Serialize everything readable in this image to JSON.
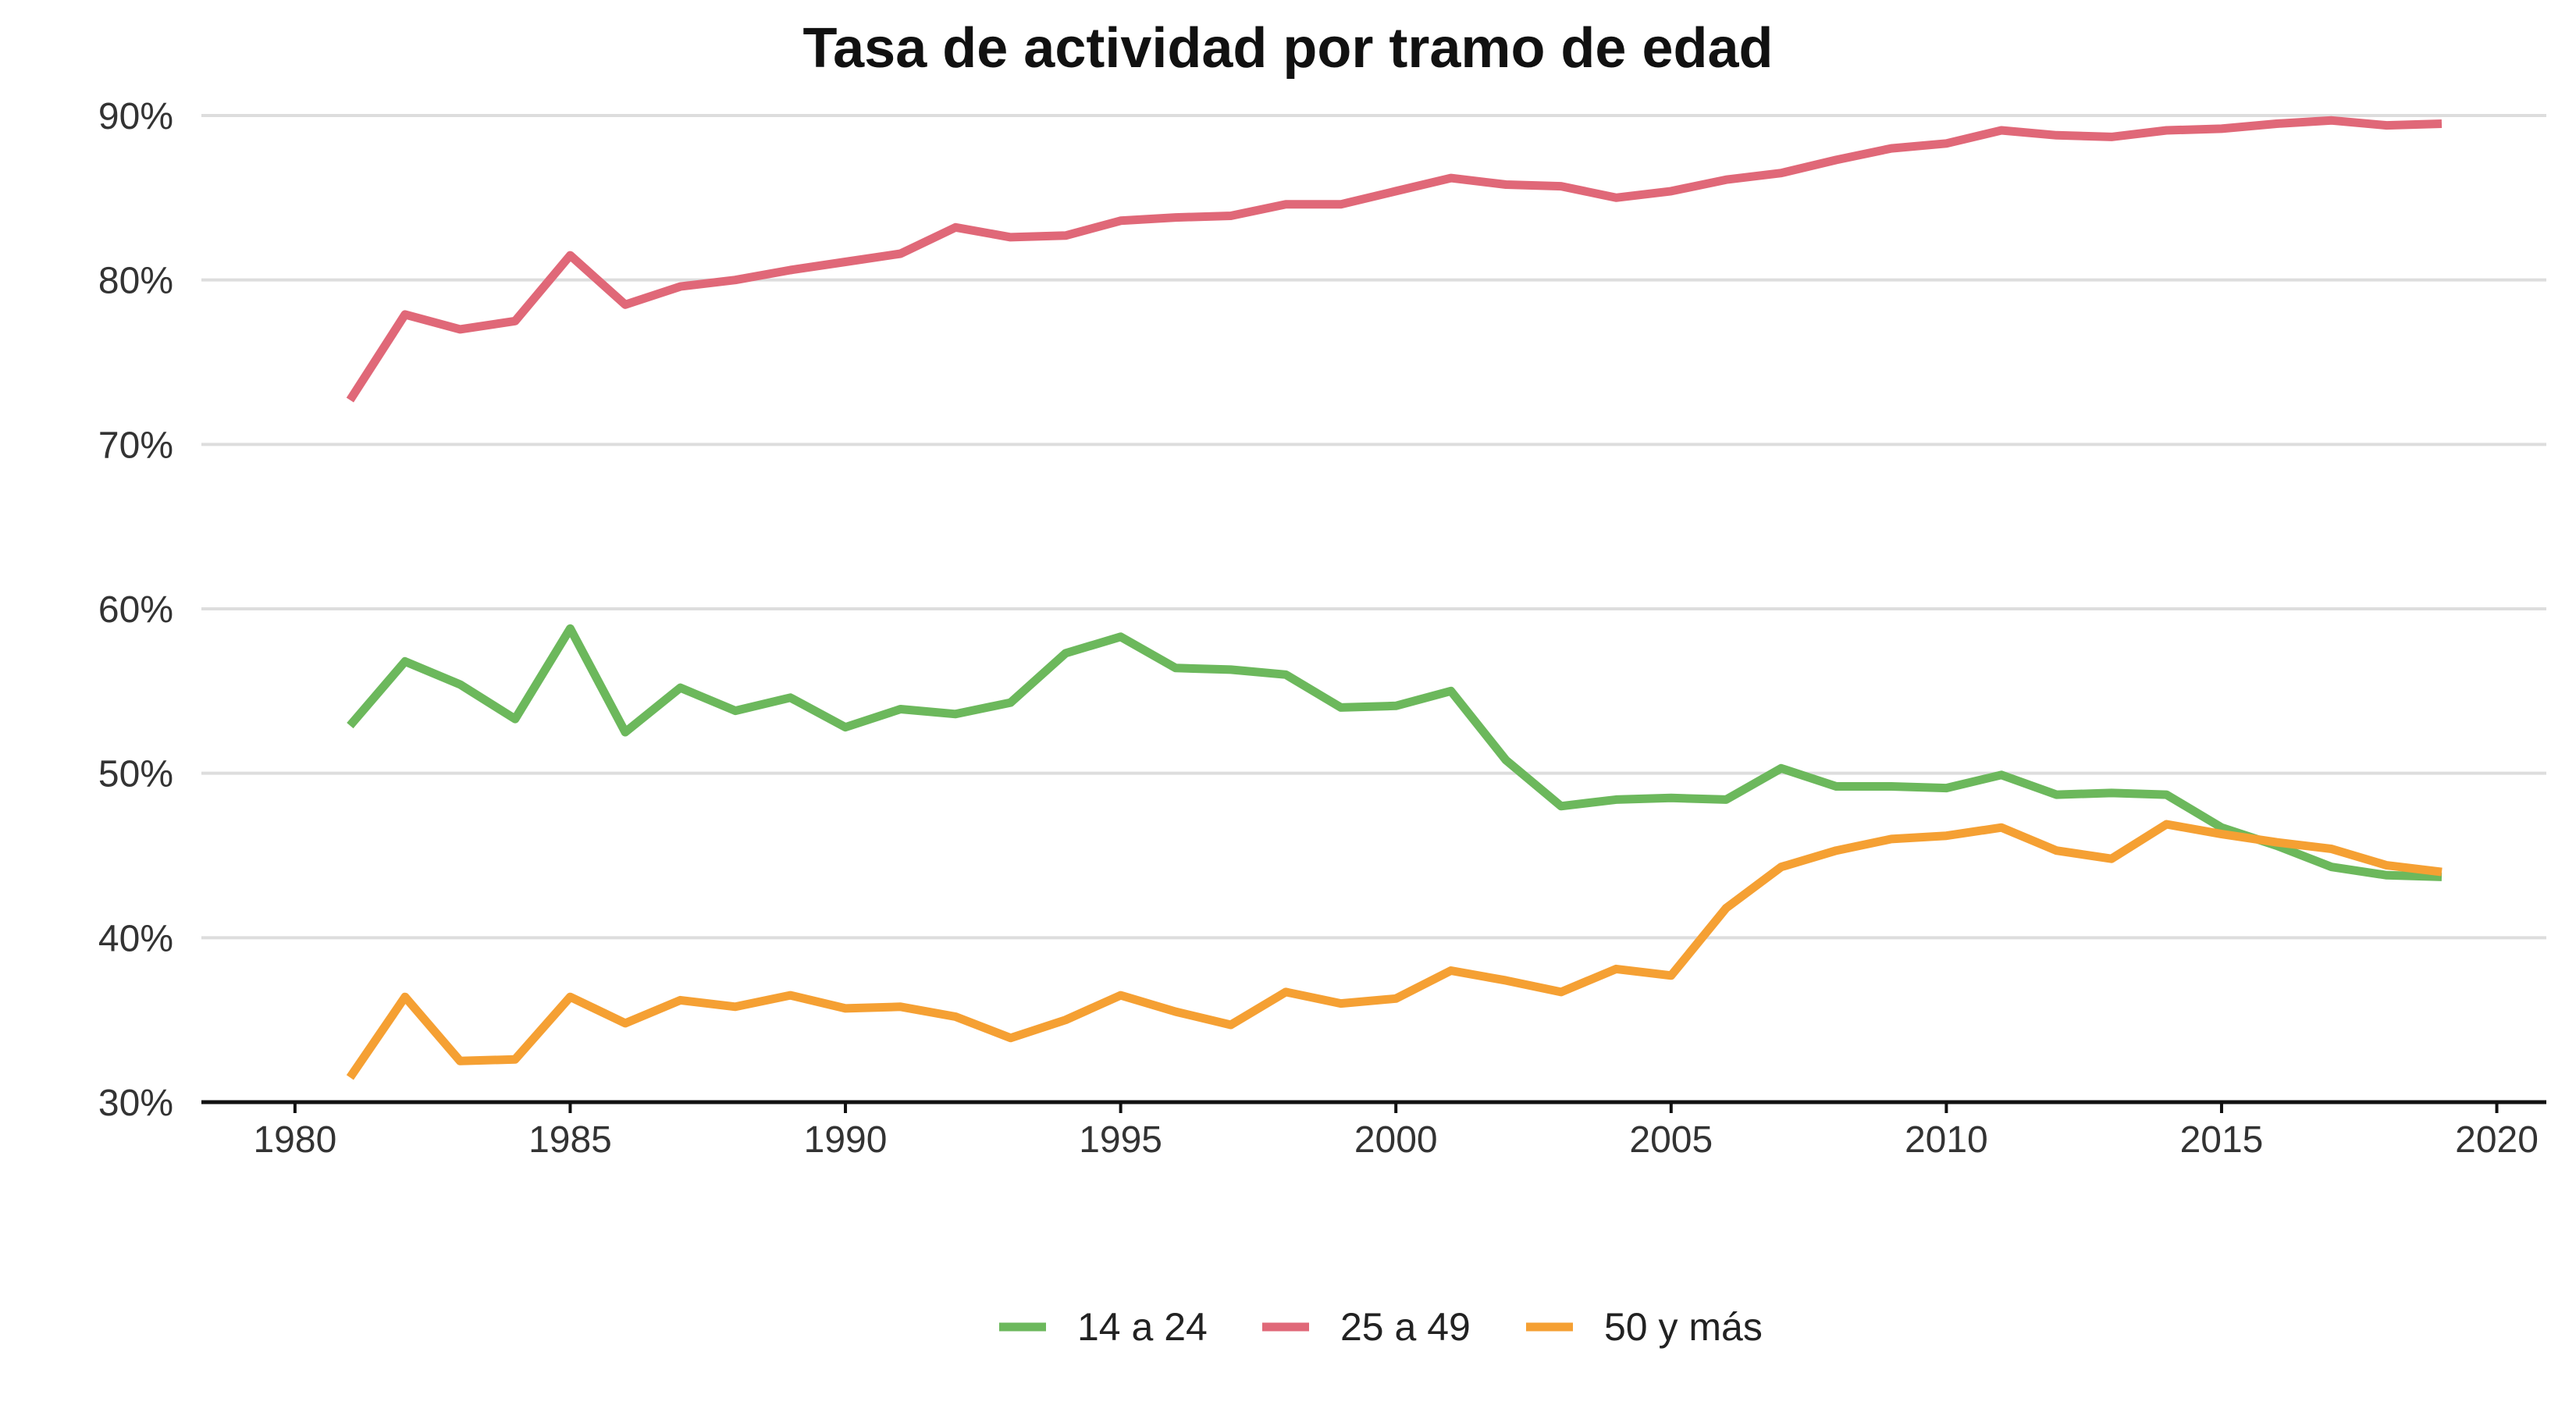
{
  "chart_data": {
    "type": "line",
    "title": "Tasa de actividad por tramo de edad",
    "xlabel": "",
    "ylabel": "",
    "xlim": [
      1978.3,
      2020.9
    ],
    "ylim": [
      30,
      90
    ],
    "x_ticks": [
      "1980",
      "1985",
      "1990",
      "1995",
      "2000",
      "2005",
      "2010",
      "2015",
      "2020"
    ],
    "y_ticks": [
      "30%",
      "40%",
      "50%",
      "60%",
      "70%",
      "80%",
      "90%"
    ],
    "grid": true,
    "legend_position": "bottom",
    "x": [
      1981,
      1982,
      1983,
      1984,
      1985,
      1986,
      1987,
      1988,
      1989,
      1990,
      1991,
      1992,
      1993,
      1994,
      1995,
      1996,
      1997,
      1998,
      1999,
      2000,
      2001,
      2002,
      2003,
      2004,
      2005,
      2006,
      2007,
      2008,
      2009,
      2010,
      2011,
      2012,
      2013,
      2014,
      2015,
      2016,
      2017,
      2018,
      2019
    ],
    "series": [
      {
        "name": "14 a 24",
        "color": "#6cb85c",
        "values": [
          52.9,
          56.8,
          55.4,
          53.3,
          58.8,
          52.5,
          55.2,
          53.8,
          54.6,
          52.8,
          53.9,
          53.6,
          54.3,
          57.3,
          58.3,
          56.4,
          56.3,
          56.0,
          54.0,
          54.1,
          55.0,
          50.8,
          48.0,
          48.4,
          48.5,
          48.4,
          50.3,
          49.2,
          49.2,
          49.1,
          49.9,
          48.7,
          48.8,
          48.7,
          46.7,
          45.6,
          44.3,
          43.8,
          43.7
        ]
      },
      {
        "name": "25 a 49",
        "color": "#e06878",
        "values": [
          72.7,
          77.9,
          77.0,
          77.5,
          81.5,
          78.5,
          79.6,
          80.0,
          80.6,
          81.1,
          81.6,
          83.2,
          82.6,
          82.7,
          83.6,
          83.8,
          83.9,
          84.6,
          84.6,
          85.4,
          86.2,
          85.8,
          85.7,
          85.0,
          85.4,
          86.1,
          86.5,
          87.3,
          88.0,
          88.3,
          89.1,
          88.8,
          88.7,
          89.1,
          89.2,
          89.5,
          89.7,
          89.4,
          89.5
        ]
      },
      {
        "name": "50 y más",
        "color": "#f5a033",
        "values": [
          31.5,
          36.4,
          32.5,
          32.6,
          36.4,
          34.8,
          36.2,
          35.8,
          36.5,
          35.7,
          35.8,
          35.2,
          33.9,
          35.0,
          36.5,
          35.5,
          34.7,
          36.7,
          36.0,
          36.3,
          38.0,
          37.4,
          36.7,
          38.1,
          37.7,
          41.8,
          44.3,
          45.3,
          46.0,
          46.2,
          46.7,
          45.3,
          44.8,
          46.9,
          46.3,
          45.8,
          45.4,
          44.4,
          44.0
        ]
      }
    ]
  }
}
